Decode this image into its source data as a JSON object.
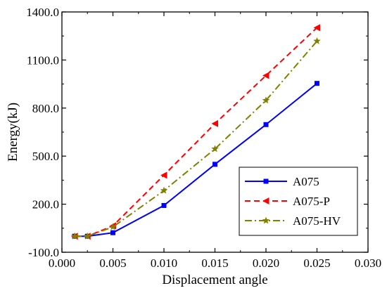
{
  "chart_data": {
    "type": "line",
    "xlabel": "Displacement angle",
    "ylabel": "Energy(kJ)",
    "xlim": [
      0.0,
      0.03
    ],
    "ylim": [
      -100.0,
      1400.0
    ],
    "x_ticks": [
      0.0,
      0.005,
      0.01,
      0.015,
      0.02,
      0.025,
      0.03
    ],
    "x_tick_labels": [
      "0.000",
      "0.005",
      "0.010",
      "0.015",
      "0.020",
      "0.025",
      "0.030"
    ],
    "y_ticks": [
      -100.0,
      200.0,
      500.0,
      800.0,
      1100.0,
      1400.0
    ],
    "y_tick_labels": [
      "-100.0",
      "200.0",
      "500.0",
      "800.0",
      "1100.0",
      "1400.0"
    ],
    "grid": false,
    "legend_position": "bottom-right",
    "series": [
      {
        "name": "A075",
        "color": "#0000ff",
        "line_style": "solid",
        "marker": "square",
        "x": [
          0.00125,
          0.0025,
          0.005,
          0.01,
          0.015,
          0.02,
          0.025
        ],
        "y": [
          0,
          0,
          22,
          192,
          449,
          697,
          954
        ]
      },
      {
        "name": "A075-P",
        "color": "#ff0000",
        "line_style": "dash",
        "marker": "triangle-left",
        "x": [
          0.00125,
          0.0025,
          0.005,
          0.01,
          0.015,
          0.02,
          0.025
        ],
        "y": [
          0,
          0,
          65,
          381,
          703,
          1003,
          1302
        ]
      },
      {
        "name": "A075-HV",
        "color": "#808000",
        "line_style": "dashdot",
        "marker": "star",
        "x": [
          0.00125,
          0.0025,
          0.005,
          0.01,
          0.015,
          0.02,
          0.025
        ],
        "y": [
          0,
          0,
          58,
          285,
          545,
          848,
          1218
        ]
      }
    ]
  }
}
